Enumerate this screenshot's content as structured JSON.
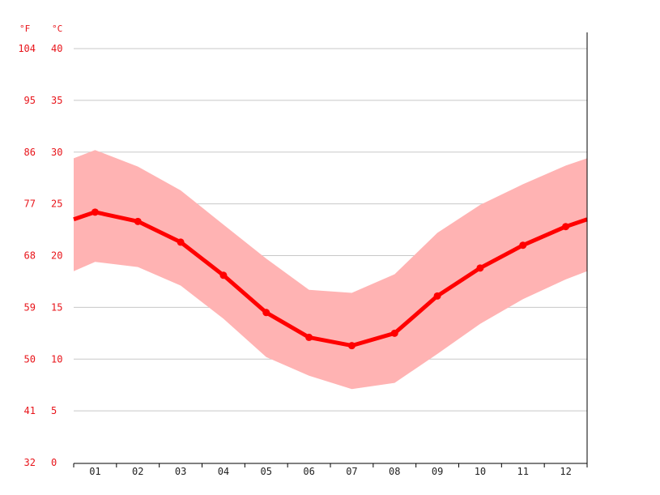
{
  "chart_data": {
    "type": "line",
    "title": "",
    "xlabel": "",
    "ylabel": "",
    "units": {
      "left": "°F",
      "right": "°C"
    },
    "categories": [
      "01",
      "02",
      "03",
      "04",
      "05",
      "06",
      "07",
      "08",
      "09",
      "10",
      "11",
      "12"
    ],
    "ylim": [
      0,
      40
    ],
    "yticks_c": [
      "0",
      "5",
      "10",
      "15",
      "20",
      "25",
      "30",
      "35",
      "40"
    ],
    "yticks_f": [
      "32",
      "41",
      "50",
      "59",
      "68",
      "77",
      "86",
      "95",
      "104"
    ],
    "grid": true,
    "series": [
      {
        "values": [
          24.2,
          23.3,
          21.3,
          18.1,
          14.5,
          12.1,
          11.3,
          12.5,
          16.1,
          18.8,
          21.0,
          22.8
        ],
        "color": "#ff0000"
      }
    ],
    "band": {
      "upper": [
        30.2,
        28.6,
        26.3,
        23.0,
        19.7,
        16.7,
        16.4,
        18.2,
        22.2,
        24.9,
        26.9,
        28.7
      ],
      "lower": [
        19.4,
        18.9,
        17.1,
        13.9,
        10.2,
        8.4,
        7.1,
        7.7,
        10.5,
        13.4,
        15.8,
        17.7
      ],
      "color": "#ffb3b3"
    },
    "edge_values": {
      "left": {
        "mean": 23.5,
        "upper": 29.4,
        "lower": 18.5
      },
      "right": {
        "mean": 23.5,
        "upper": 29.4,
        "lower": 18.5
      }
    }
  }
}
